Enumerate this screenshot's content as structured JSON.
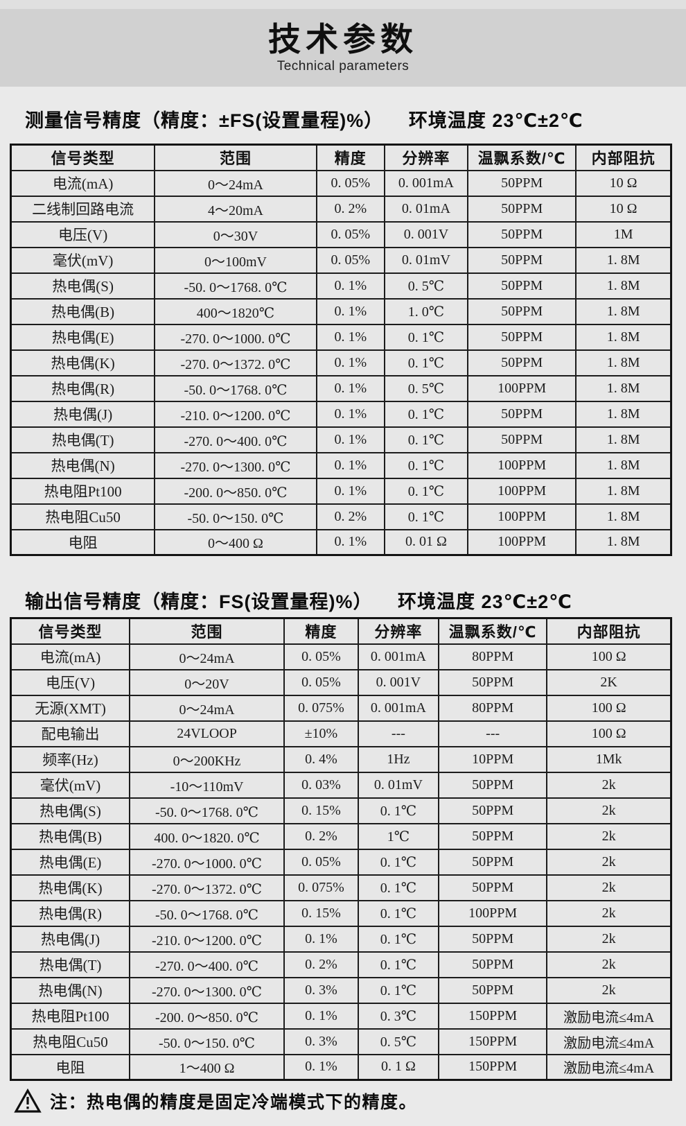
{
  "page": {
    "title": "技术参数",
    "subtitle": "Technical parameters"
  },
  "colors": {
    "bg": "#eaeaea",
    "strip": "#e0e0e0",
    "band": "#d1d1d1",
    "cell": "#e7e7e7",
    "border": "#1c1c1c",
    "text": "#1b1b1b"
  },
  "sections": [
    {
      "heading": "测量信号精度（精度：±FS(设置量程)%）",
      "env": "环境温度 23℃±2℃",
      "table": {
        "headers": [
          "信号类型",
          "范围",
          "精度",
          "分辨率",
          "温飘系数/℃",
          "内部阻抗"
        ],
        "rows": [
          [
            "电流(mA)",
            "0～24mA",
            "0. 05%",
            "0. 001mA",
            "50PPM",
            "10 Ω"
          ],
          [
            "二线制回路电流",
            "4～20mA",
            "0. 2%",
            "0. 01mA",
            "50PPM",
            "10 Ω"
          ],
          [
            "电压(V)",
            "0～30V",
            "0. 05%",
            "0. 001V",
            "50PPM",
            "1M"
          ],
          [
            "毫伏(mV)",
            "0～100mV",
            "0. 05%",
            "0. 01mV",
            "50PPM",
            "1. 8M"
          ],
          [
            "热电偶(S)",
            "-50. 0～1768. 0℃",
            "0. 1%",
            "0. 5℃",
            "50PPM",
            "1. 8M"
          ],
          [
            "热电偶(B)",
            "400～1820℃",
            "0. 1%",
            "1. 0℃",
            "50PPM",
            "1. 8M"
          ],
          [
            "热电偶(E)",
            "-270. 0～1000. 0℃",
            "0. 1%",
            "0. 1℃",
            "50PPM",
            "1. 8M"
          ],
          [
            "热电偶(K)",
            "-270. 0～1372. 0℃",
            "0. 1%",
            "0. 1℃",
            "50PPM",
            "1. 8M"
          ],
          [
            "热电偶(R)",
            "-50. 0～1768. 0℃",
            "0. 1%",
            "0. 5℃",
            "100PPM",
            "1. 8M"
          ],
          [
            "热电偶(J)",
            "-210. 0～1200. 0℃",
            "0. 1%",
            "0. 1℃",
            "50PPM",
            "1. 8M"
          ],
          [
            "热电偶(T)",
            "-270. 0～400. 0℃",
            "0. 1%",
            "0. 1℃",
            "50PPM",
            "1. 8M"
          ],
          [
            "热电偶(N)",
            "-270. 0～1300. 0℃",
            "0. 1%",
            "0. 1℃",
            "100PPM",
            "1. 8M"
          ],
          [
            "热电阻Pt100",
            "-200. 0～850. 0℃",
            "0. 1%",
            "0. 1℃",
            "100PPM",
            "1. 8M"
          ],
          [
            "热电阻Cu50",
            "-50. 0～150. 0℃",
            "0. 2%",
            "0. 1℃",
            "100PPM",
            "1. 8M"
          ],
          [
            "电阻",
            "0～400 Ω",
            "0. 1%",
            "0. 01 Ω",
            "100PPM",
            "1. 8M"
          ]
        ]
      }
    },
    {
      "heading": "输出信号精度（精度：FS(设置量程)%）",
      "env": "环境温度 23℃±2℃",
      "table": {
        "headers": [
          "信号类型",
          "范围",
          "精度",
          "分辨率",
          "温飘系数/℃",
          "内部阻抗"
        ],
        "rows": [
          [
            "电流(mA)",
            "0～24mA",
            "0. 05%",
            "0. 001mA",
            "80PPM",
            "100 Ω"
          ],
          [
            "电压(V)",
            "0～20V",
            "0. 05%",
            "0. 001V",
            "50PPM",
            "2K"
          ],
          [
            "无源(XMT)",
            "0～24mA",
            "0. 075%",
            "0. 001mA",
            "80PPM",
            "100 Ω"
          ],
          [
            "配电输出",
            "24VLOOP",
            "±10%",
            "---",
            "---",
            "100 Ω"
          ],
          [
            "频率(Hz)",
            "0～200KHz",
            "0. 4%",
            "1Hz",
            "10PPM",
            "1Mk"
          ],
          [
            "毫伏(mV)",
            "-10～110mV",
            "0. 03%",
            "0. 01mV",
            "50PPM",
            "2k"
          ],
          [
            "热电偶(S)",
            "-50. 0～1768. 0℃",
            "0. 15%",
            "0. 1℃",
            "50PPM",
            "2k"
          ],
          [
            "热电偶(B)",
            "400. 0～1820. 0℃",
            "0. 2%",
            "1℃",
            "50PPM",
            "2k"
          ],
          [
            "热电偶(E)",
            "-270. 0～1000. 0℃",
            "0. 05%",
            "0. 1℃",
            "50PPM",
            "2k"
          ],
          [
            "热电偶(K)",
            "-270. 0～1372. 0℃",
            "0. 075%",
            "0. 1℃",
            "50PPM",
            "2k"
          ],
          [
            "热电偶(R)",
            "-50. 0～1768. 0℃",
            "0. 15%",
            "0. 1℃",
            "100PPM",
            "2k"
          ],
          [
            "热电偶(J)",
            "-210. 0～1200. 0℃",
            "0. 1%",
            "0. 1℃",
            "50PPM",
            "2k"
          ],
          [
            "热电偶(T)",
            "-270. 0～400. 0℃",
            "0. 2%",
            "0. 1℃",
            "50PPM",
            "2k"
          ],
          [
            "热电偶(N)",
            "-270. 0～1300. 0℃",
            "0. 3%",
            "0. 1℃",
            "50PPM",
            "2k"
          ],
          [
            "热电阻Pt100",
            "-200. 0～850. 0℃",
            "0. 1%",
            "0. 3℃",
            "150PPM",
            "激励电流≤4mA"
          ],
          [
            "热电阻Cu50",
            "-50. 0～150. 0℃",
            "0. 3%",
            "0. 5℃",
            "150PPM",
            "激励电流≤4mA"
          ],
          [
            "电阻",
            "1～400 Ω",
            "0. 1%",
            "0. 1 Ω",
            "150PPM",
            "激励电流≤4mA"
          ]
        ]
      }
    }
  ],
  "note": {
    "icon": "warning-triangle",
    "text": "注：热电偶的精度是固定冷端模式下的精度。"
  }
}
